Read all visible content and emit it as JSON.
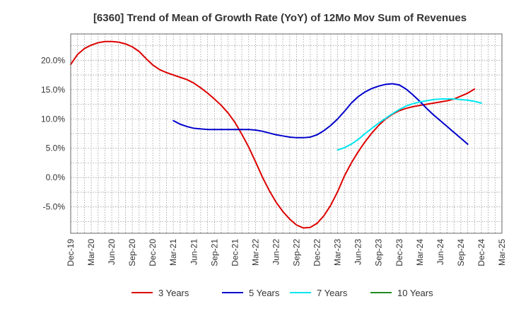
{
  "chart_data": {
    "type": "line",
    "title": "[6360]  Trend of Mean of Growth Rate (YoY) of 12Mo Mov Sum of Revenues",
    "xlabel": "",
    "ylabel": "",
    "ylim": [
      -9.5,
      24.5
    ],
    "grid": true,
    "legend_position": "bottom",
    "y_ticks": [
      -5,
      0,
      5,
      10,
      15,
      20
    ],
    "y_tick_labels": [
      "-5.0%",
      "0.0%",
      "5.0%",
      "10.0%",
      "15.0%",
      "20.0%"
    ],
    "x_tick_labels": [
      "Dec-19",
      "Mar-20",
      "Jun-20",
      "Sep-20",
      "Dec-20",
      "Mar-21",
      "Jun-21",
      "Sep-21",
      "Dec-21",
      "Mar-22",
      "Jun-22",
      "Sep-22",
      "Dec-22",
      "Mar-23",
      "Jun-23",
      "Sep-23",
      "Dec-23",
      "Mar-24",
      "Jun-24",
      "Sep-24",
      "Dec-24",
      "Mar-25"
    ],
    "x_start": "Dec-19",
    "x_months": 63,
    "series": [
      {
        "name": "3 Years",
        "color": "#dd0000",
        "start_index": 0,
        "values": [
          19.3,
          21.0,
          22.0,
          22.6,
          23.0,
          23.2,
          23.2,
          23.1,
          22.8,
          22.3,
          21.5,
          20.3,
          19.2,
          18.4,
          17.9,
          17.5,
          17.1,
          16.7,
          16.1,
          15.3,
          14.4,
          13.4,
          12.3,
          11.0,
          9.4,
          7.4,
          5.2,
          2.7,
          0.1,
          -2.2,
          -4.2,
          -5.8,
          -7.1,
          -8.1,
          -8.6,
          -8.5,
          -7.8,
          -6.5,
          -4.7,
          -2.4,
          0.3,
          2.5,
          4.4,
          6.1,
          7.6,
          8.9,
          10.0,
          10.8,
          11.4,
          11.8,
          12.1,
          12.3,
          12.5,
          12.7,
          12.9,
          13.1,
          13.4,
          13.9,
          14.4,
          15.1
        ]
      },
      {
        "name": "5 Years",
        "color": "#0000cc",
        "start_index": 15,
        "values": [
          9.7,
          9.1,
          8.7,
          8.4,
          8.3,
          8.2,
          8.2,
          8.2,
          8.2,
          8.2,
          8.2,
          8.2,
          8.1,
          7.9,
          7.6,
          7.3,
          7.1,
          6.9,
          6.8,
          6.8,
          6.9,
          7.3,
          8.0,
          8.9,
          10.0,
          11.3,
          12.7,
          13.8,
          14.6,
          15.2,
          15.6,
          15.9,
          16.0,
          15.8,
          15.1,
          14.1,
          13.0,
          11.8,
          10.7,
          9.7,
          8.7,
          7.7,
          6.7,
          5.7
        ]
      },
      {
        "name": "7 Years",
        "color": "#00e5ee",
        "start_index": 39,
        "values": [
          4.7,
          5.1,
          5.7,
          6.5,
          7.5,
          8.4,
          9.3,
          10.1,
          10.9,
          11.6,
          12.2,
          12.6,
          12.9,
          13.1,
          13.3,
          13.4,
          13.4,
          13.4,
          13.3,
          13.2,
          13.0,
          12.7
        ]
      },
      {
        "name": "10 Years",
        "color": "#228b22",
        "start_index": 0,
        "values": []
      }
    ]
  }
}
